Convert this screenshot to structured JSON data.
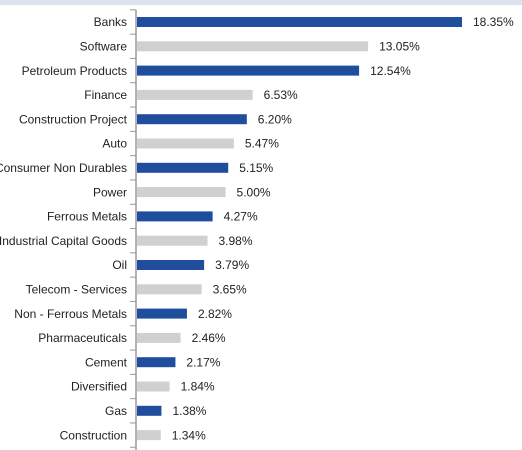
{
  "chart_data": {
    "type": "hbar",
    "categories": [
      "Banks",
      "Software",
      "Petroleum Products",
      "Finance",
      "Construction Project",
      "Auto",
      "Consumer Non Durables",
      "Power",
      "Ferrous Metals",
      "Industrial Capital Goods",
      "Oil",
      "Telecom - Services",
      "Non - Ferrous Metals",
      "Pharmaceuticals",
      "Cement",
      "Diversified",
      "Gas",
      "Construction"
    ],
    "values": [
      18.35,
      13.05,
      12.54,
      6.53,
      6.2,
      5.47,
      5.15,
      5.0,
      4.27,
      3.98,
      3.79,
      3.65,
      2.82,
      2.46,
      2.17,
      1.84,
      1.38,
      1.34
    ],
    "value_labels": [
      "18.35%",
      "13.05%",
      "12.54%",
      "6.53%",
      "6.20%",
      "5.47%",
      "5.15%",
      "5.00%",
      "4.27%",
      "3.98%",
      "3.79%",
      "3.65%",
      "2.82%",
      "2.46%",
      "2.17%",
      "1.84%",
      "1.38%",
      "1.34%"
    ],
    "colors": [
      "#1f4e9c",
      "#d0d0d0",
      "#1f4e9c",
      "#d0d0d0",
      "#1f4e9c",
      "#d0d0d0",
      "#1f4e9c",
      "#d0d0d0",
      "#1f4e9c",
      "#d0d0d0",
      "#1f4e9c",
      "#d0d0d0",
      "#1f4e9c",
      "#d0d0d0",
      "#1f4e9c",
      "#d0d0d0",
      "#1f4e9c",
      "#d0d0d0"
    ]
  }
}
